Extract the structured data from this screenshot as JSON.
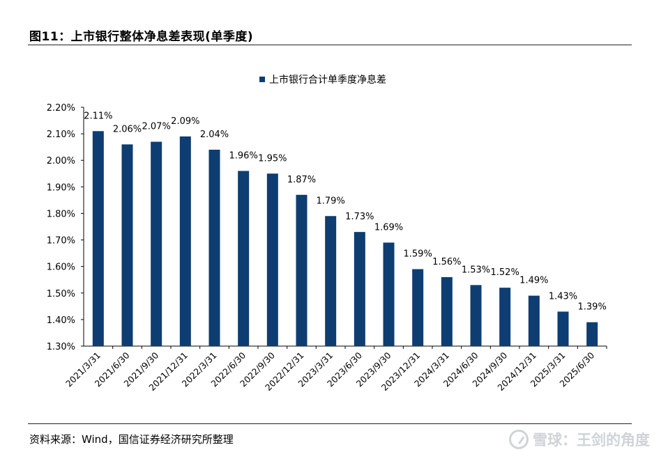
{
  "figure": {
    "title": "图11：上市银行整体净息差表现(单季度)",
    "source": "资料来源：Wind，国信证券经济研究所整理",
    "watermark": "雪球：王剑的角度"
  },
  "colors": {
    "bar": "#0e3d72",
    "axis": "#000000"
  },
  "chart_data": {
    "type": "bar",
    "title": "",
    "legend": [
      "上市银行合计单季度净息差"
    ],
    "legend_position": "top-center",
    "xlabel": "",
    "ylabel": "",
    "ylim": [
      1.3,
      2.2
    ],
    "yticks": [
      "1.30%",
      "1.40%",
      "1.50%",
      "1.60%",
      "1.70%",
      "1.80%",
      "1.90%",
      "2.00%",
      "2.10%",
      "2.20%"
    ],
    "grid": false,
    "categories": [
      "2021/3/31",
      "2021/6/30",
      "2021/9/30",
      "2021/12/31",
      "2022/3/31",
      "2022/6/30",
      "2022/9/30",
      "2022/12/31",
      "2023/3/31",
      "2023/6/30",
      "2023/9/30",
      "2023/12/31",
      "2024/3/31",
      "2024/6/30",
      "2024/9/30",
      "2024/12/31",
      "2025/3/31",
      "2025/6/30"
    ],
    "values": [
      2.11,
      2.06,
      2.07,
      2.09,
      2.04,
      1.96,
      1.95,
      1.87,
      1.79,
      1.73,
      1.69,
      1.59,
      1.56,
      1.53,
      1.52,
      1.49,
      1.43,
      1.39
    ],
    "data_labels": [
      "2.11%",
      "2.06%",
      "2.07%",
      "2.09%",
      "2.04%",
      "1.96%",
      "1.95%",
      "1.87%",
      "1.79%",
      "1.73%",
      "1.69%",
      "1.59%",
      "1.56%",
      "1.53%",
      "1.52%",
      "1.49%",
      "1.43%",
      "1.39%"
    ]
  }
}
